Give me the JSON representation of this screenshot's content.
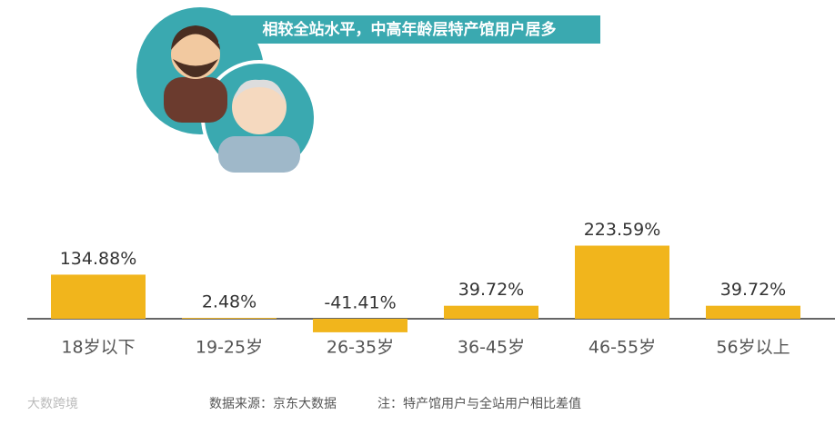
{
  "chart_data": {
    "type": "bar",
    "title": "相较全站水平，中高年龄层特产馆用户居多",
    "categories": [
      "18岁以下",
      "19-25岁",
      "26-35岁",
      "36-45岁",
      "46-55岁",
      "56岁以上"
    ],
    "values": [
      134.88,
      2.48,
      -41.41,
      39.72,
      223.59,
      39.72
    ],
    "value_labels": [
      "134.88%",
      "2.48%",
      "-41.41%",
      "39.72%",
      "223.59%",
      "39.72%"
    ],
    "color": "#f1b51c",
    "source": "数据来源：京东大数据",
    "note": "注：特产馆用户与全站用户相比差值",
    "watermark": "大数跨境"
  }
}
